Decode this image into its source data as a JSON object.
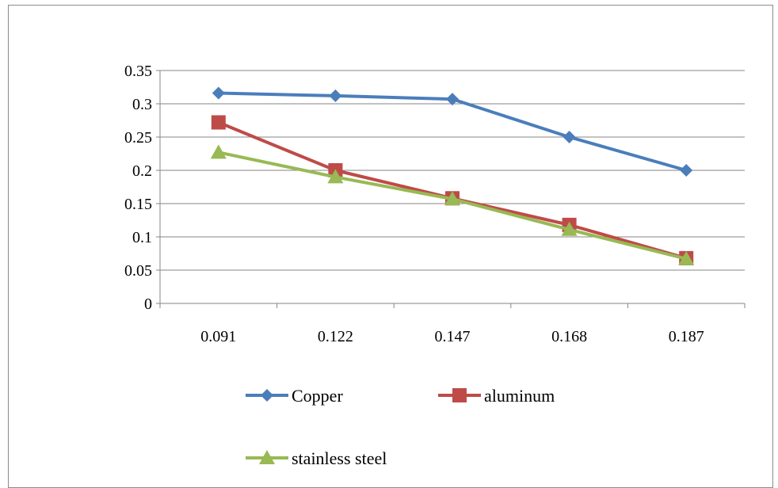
{
  "chart_data": {
    "type": "line",
    "title": "",
    "xlabel": "",
    "ylabel": "",
    "categories": [
      "0.091",
      "0.122",
      "0.147",
      "0.168",
      "0.187"
    ],
    "ylim": [
      0,
      0.35
    ],
    "yticks": [
      "0",
      "0.05",
      "0.1",
      "0.15",
      "0.2",
      "0.25",
      "0.3",
      "0.35"
    ],
    "grid": true,
    "legend_placement": "bottom",
    "series": [
      {
        "name": "Copper",
        "values": [
          0.316,
          0.312,
          0.307,
          0.25,
          0.2
        ],
        "color": "#4a7ebb",
        "marker": "diamond"
      },
      {
        "name": "aluminum",
        "values": [
          0.272,
          0.2,
          0.158,
          0.118,
          0.068
        ],
        "color": "#be4b48",
        "marker": "square"
      },
      {
        "name": "stainless steel",
        "values": [
          0.227,
          0.19,
          0.157,
          0.111,
          0.067
        ],
        "color": "#98b954",
        "marker": "triangle"
      }
    ]
  }
}
